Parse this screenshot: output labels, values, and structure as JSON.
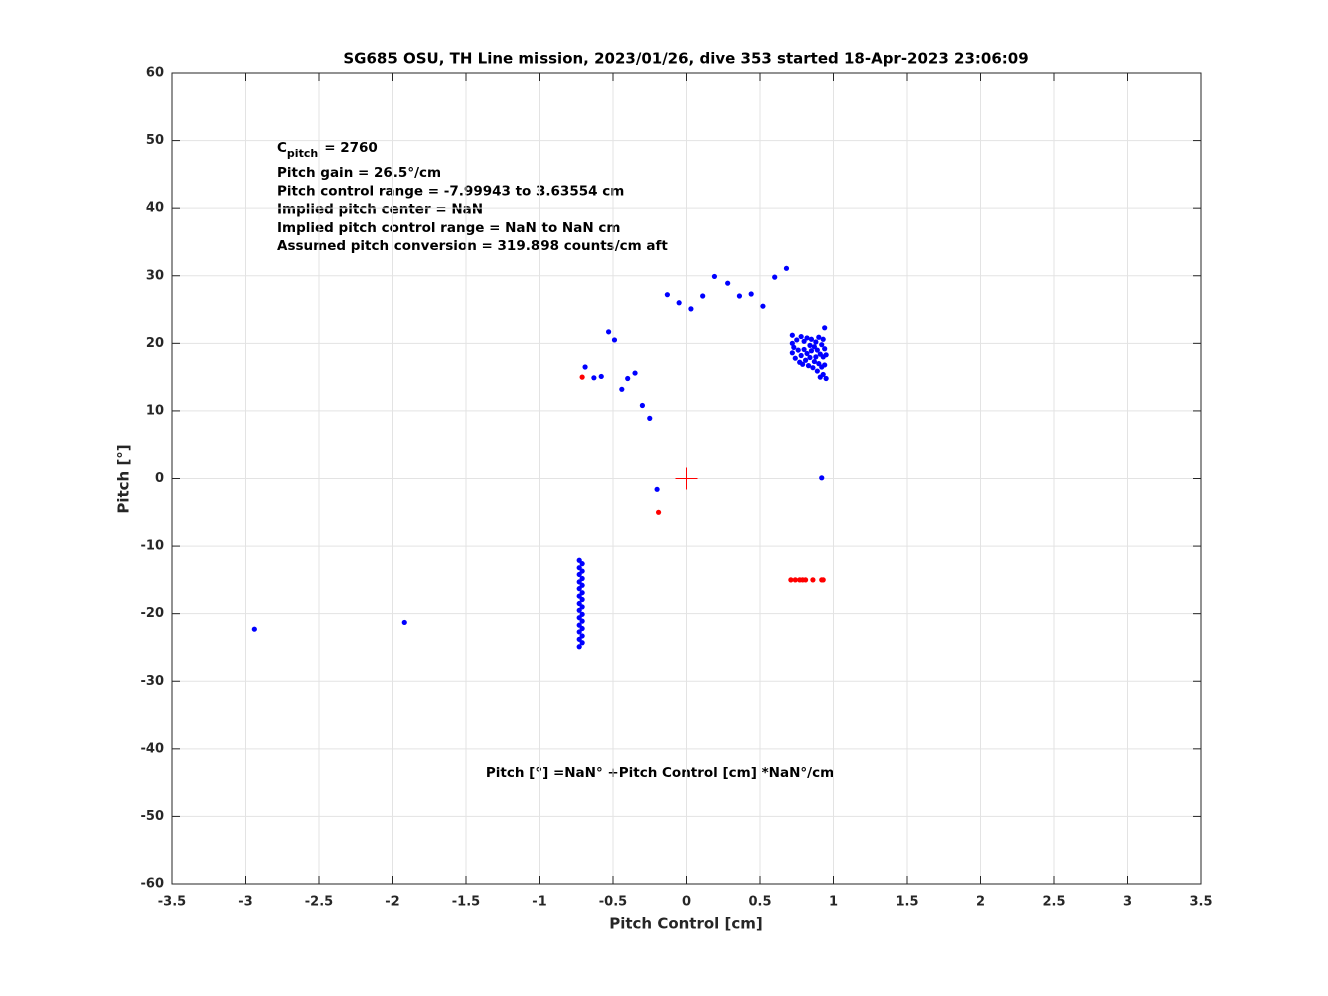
{
  "chart_data": {
    "type": "scatter",
    "title": "SG685 OSU, TH Line mission, 2023/01/26, dive 353 started 18-Apr-2023 23:06:09",
    "x_label": "Pitch Control [cm]",
    "y_label": "Pitch [°]",
    "xlim": [
      -3.5,
      3.5
    ],
    "ylim": [
      -60,
      60
    ],
    "xticks": [
      -3.5,
      -3,
      -2.5,
      -2,
      -1.5,
      -1,
      -0.5,
      0,
      0.5,
      1,
      1.5,
      2,
      2.5,
      3,
      3.5
    ],
    "yticks": [
      -60,
      -50,
      -40,
      -30,
      -20,
      -10,
      0,
      10,
      20,
      30,
      40,
      50,
      60
    ],
    "grid": true,
    "annotations": {
      "c_pitch": {
        "base": "C",
        "sub": "pitch",
        "rest": "= 2760"
      },
      "lines": [
        "Pitch gain = 26.5°/cm",
        "Pitch control range = -7.99943 to 3.63554 cm",
        "Implied pitch center = NaN",
        "Implied pitch control range = NaN to NaN cm",
        "Assumed pitch conversion = 319.898 counts/cm aft"
      ],
      "fit": "Pitch [°] =NaN° +Pitch Control [cm] *NaN°/cm"
    },
    "series": [
      {
        "color": "#0000ff",
        "marker": "dot",
        "x": [
          -2.94,
          -1.92,
          -0.69,
          -0.63,
          -0.58,
          -0.53,
          -0.49,
          -0.44,
          -0.4,
          -0.35,
          -0.3,
          -0.25,
          -0.2,
          -0.13,
          -0.05,
          0.03,
          0.11,
          0.19,
          0.28,
          0.36,
          0.44,
          0.52,
          0.6,
          0.68,
          0.92,
          -0.73,
          -0.71,
          -0.73,
          -0.71,
          -0.73,
          -0.71,
          -0.73,
          -0.71,
          -0.73,
          -0.71,
          -0.73,
          -0.71,
          -0.73,
          -0.71,
          -0.73,
          -0.71,
          -0.73,
          -0.71,
          -0.73,
          -0.71,
          -0.73,
          -0.71,
          -0.73,
          -0.71,
          -0.73,
          0.72,
          0.72,
          0.72,
          0.73,
          0.74,
          0.75,
          0.76,
          0.77,
          0.78,
          0.78,
          0.79,
          0.8,
          0.8,
          0.81,
          0.82,
          0.82,
          0.83,
          0.84,
          0.84,
          0.85,
          0.85,
          0.86,
          0.87,
          0.87,
          0.88,
          0.88,
          0.89,
          0.89,
          0.9,
          0.9,
          0.91,
          0.91,
          0.92,
          0.92,
          0.93,
          0.93,
          0.94,
          0.94,
          0.94,
          0.95,
          0.95,
          0.93
        ],
        "values": [
          -22.3,
          -21.3,
          16.5,
          14.9,
          15.1,
          21.7,
          20.5,
          13.2,
          14.8,
          15.6,
          10.8,
          8.9,
          -1.6,
          27.2,
          26.0,
          25.1,
          27.0,
          29.9,
          28.9,
          27.0,
          27.3,
          25.5,
          29.8,
          31.1,
          0.1,
          -12.1,
          -12.6,
          -13.2,
          -13.7,
          -14.2,
          -14.8,
          -15.3,
          -15.8,
          -16.3,
          -16.9,
          -17.4,
          -17.9,
          -18.5,
          -19.0,
          -19.5,
          -20.1,
          -20.6,
          -21.1,
          -21.7,
          -22.2,
          -22.7,
          -23.3,
          -23.8,
          -24.3,
          -24.9,
          21.2,
          20.0,
          18.6,
          19.4,
          17.8,
          20.5,
          19.0,
          17.2,
          21.0,
          18.2,
          16.9,
          20.3,
          19.1,
          17.5,
          20.8,
          18.5,
          16.7,
          19.7,
          17.9,
          20.6,
          18.9,
          16.4,
          19.5,
          17.3,
          20.2,
          18.0,
          15.9,
          19.0,
          20.9,
          17.0,
          18.4,
          15.0,
          19.8,
          16.5,
          20.6,
          18.0,
          22.3,
          19.2,
          16.8,
          18.3,
          14.8,
          15.4
        ]
      },
      {
        "color": "#ff0000",
        "marker": "dot",
        "x": [
          -0.71,
          -0.19,
          0.71,
          0.74,
          0.77,
          0.79,
          0.81,
          0.86,
          0.92,
          0.93
        ],
        "values": [
          15.0,
          -5.0,
          -15,
          -15,
          -15,
          -15,
          -15,
          -15,
          -15,
          -15
        ]
      },
      {
        "color": "#ff0000",
        "marker": "plus",
        "x": [
          0
        ],
        "values": [
          0
        ]
      }
    ]
  }
}
